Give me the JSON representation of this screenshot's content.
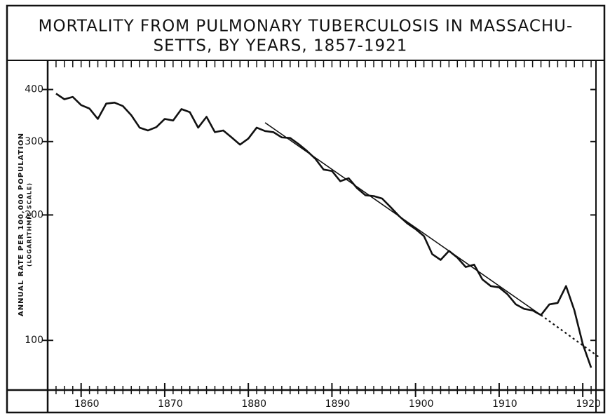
{
  "chart_data": {
    "type": "line",
    "title": [
      "MORTALITY FROM PULMONARY TUBERCULOSIS IN MASSACHU-",
      "SETTS, BY YEARS, 1857-1921"
    ],
    "y_label": [
      "ANNUAL RATE PER 100,000 POPULATION",
      "(LOGARITHMIC SCALE)"
    ],
    "log_y": true,
    "xlim": [
      1856,
      1922
    ],
    "xticks": [
      1860,
      1870,
      1880,
      1890,
      1900,
      1910,
      1920
    ],
    "ylim": [
      76,
      470
    ],
    "yticks": [
      100,
      200,
      300,
      400
    ],
    "series": [
      {
        "color": "#111111",
        "style": "solid",
        "width": 2.6,
        "x": [
          1857,
          1858,
          1859,
          1860,
          1861,
          1862,
          1863,
          1864,
          1865,
          1866,
          1867,
          1868,
          1869,
          1870,
          1871,
          1872,
          1873,
          1874,
          1875,
          1876,
          1877,
          1878,
          1879,
          1880,
          1881,
          1882,
          1883,
          1884,
          1885,
          1886,
          1887,
          1888,
          1889,
          1890,
          1891,
          1892,
          1893,
          1894,
          1895,
          1896,
          1897,
          1898,
          1899,
          1900,
          1901,
          1902,
          1903,
          1904,
          1905,
          1906,
          1907,
          1908,
          1909,
          1910,
          1911,
          1912,
          1913,
          1914,
          1915,
          1916,
          1917,
          1918,
          1919,
          1920,
          1921
        ],
        "values": [
          391,
          379,
          384,
          367,
          360,
          340,
          370,
          372,
          365,
          347,
          324,
          319,
          325,
          340,
          337,
          359,
          353,
          324,
          344,
          316,
          319,
          307,
          295,
          305,
          324,
          318,
          316,
          307,
          306,
          296,
          285,
          273,
          257,
          255,
          241,
          245,
          232,
          223,
          222,
          219,
          209,
          199,
          191,
          185,
          178,
          161,
          156,
          164,
          158,
          150,
          152,
          140,
          135,
          134,
          129,
          122,
          119,
          118,
          115,
          122,
          123,
          135,
          118,
          98,
          86
        ]
      },
      {
        "color": "#111111",
        "style": "solid",
        "width": 1.6,
        "x": [
          1882,
          1915
        ],
        "values": [
          333,
          115
        ]
      },
      {
        "color": "#111111",
        "style": "dotted",
        "width": 2.2,
        "x": [
          1915,
          1922
        ],
        "values": [
          115,
          91
        ]
      }
    ]
  }
}
